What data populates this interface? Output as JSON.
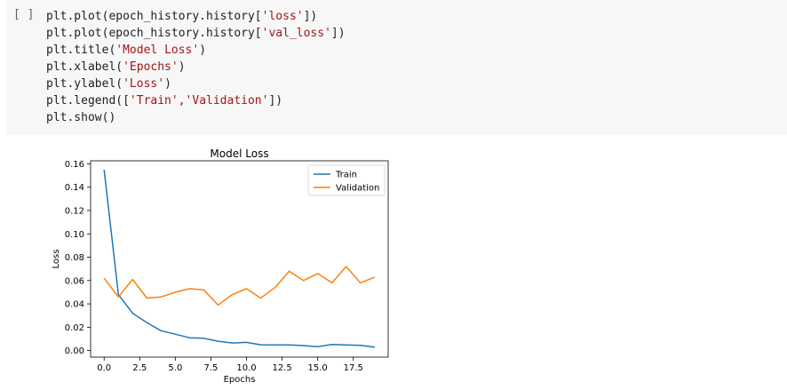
{
  "cell": {
    "run_indicator": "[ ]",
    "code_lines": [
      {
        "pre": "plt.plot(epoch_history.history[",
        "str": "'loss'",
        "post": "])"
      },
      {
        "pre": "plt.plot(epoch_history.history[",
        "str": "'val_loss'",
        "post": "])"
      },
      {
        "pre": "plt.title(",
        "str": "'Model Loss'",
        "post": ")"
      },
      {
        "pre": "plt.xlabel(",
        "str": "'Epochs'",
        "post": ")"
      },
      {
        "pre": "plt.ylabel(",
        "str": "'Loss'",
        "post": ")"
      },
      {
        "pre": "plt.legend([",
        "str": "'Train','Validation'",
        "post": "])"
      },
      {
        "pre": "plt.show()",
        "str": "",
        "post": ""
      }
    ]
  },
  "chart_data": {
    "type": "line",
    "title": "Model Loss",
    "xlabel": "Epochs",
    "ylabel": "Loss",
    "x": [
      0,
      1,
      2,
      3,
      4,
      5,
      6,
      7,
      8,
      9,
      10,
      11,
      12,
      13,
      14,
      15,
      16,
      17,
      18,
      19
    ],
    "series": [
      {
        "name": "Train",
        "color": "#1f77b4",
        "values": [
          0.155,
          0.048,
          0.032,
          0.024,
          0.017,
          0.014,
          0.011,
          0.0105,
          0.008,
          0.0065,
          0.007,
          0.005,
          0.0048,
          0.0048,
          0.0043,
          0.0033,
          0.0053,
          0.0048,
          0.0045,
          0.003
        ]
      },
      {
        "name": "Validation",
        "color": "#ff7f0e",
        "values": [
          0.062,
          0.046,
          0.061,
          0.045,
          0.046,
          0.05,
          0.053,
          0.052,
          0.039,
          0.048,
          0.053,
          0.045,
          0.054,
          0.068,
          0.06,
          0.066,
          0.058,
          0.072,
          0.058,
          0.063
        ]
      }
    ],
    "xlim": [
      -0.95,
      19.95
    ],
    "ylim": [
      -0.0056,
      0.1626
    ],
    "xticks": [
      0.0,
      2.5,
      5.0,
      7.5,
      10.0,
      12.5,
      15.0,
      17.5
    ],
    "xtick_labels": [
      "0.0",
      "2.5",
      "5.0",
      "7.5",
      "10.0",
      "12.5",
      "15.0",
      "17.5"
    ],
    "yticks": [
      0.0,
      0.02,
      0.04,
      0.06,
      0.08,
      0.1,
      0.12,
      0.14,
      0.16
    ],
    "ytick_labels": [
      "0.00",
      "0.02",
      "0.04",
      "0.06",
      "0.08",
      "0.10",
      "0.12",
      "0.14",
      "0.16"
    ],
    "grid": false,
    "legend_position": "top-right"
  }
}
